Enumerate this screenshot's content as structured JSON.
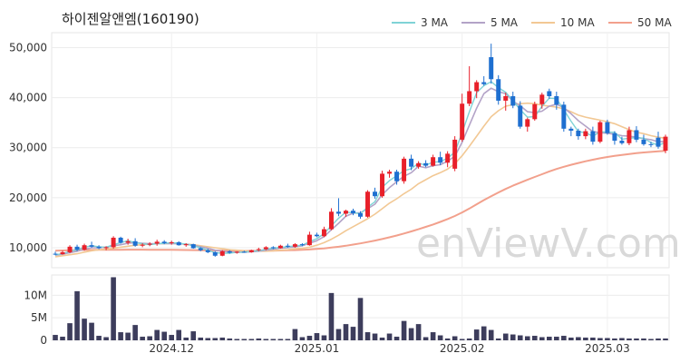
{
  "chart_data": [
    {
      "type": "candlestick",
      "title": "하이젠알앤엠(160190)",
      "yticks": [
        "10,000",
        "20,000",
        "30,000",
        "40,000",
        "50,000"
      ],
      "ytick_values": [
        10000,
        20000,
        30000,
        40000,
        50000
      ],
      "ylim": [
        6000,
        53000
      ],
      "xticks": [
        "2024.12",
        "2025.01",
        "2025.02",
        "2025.03"
      ],
      "xtick_index": [
        16,
        36,
        56,
        76
      ],
      "legend": [
        {
          "label": "3 MA",
          "color": "#7fd3d6"
        },
        {
          "label": "5 MA",
          "color": "#b3a3c7"
        },
        {
          "label": "10 MA",
          "color": "#f2c894"
        },
        {
          "label": "50 MA",
          "color": "#f2a08c"
        }
      ],
      "up_color": "#e8202a",
      "down_color": "#1e6fd0",
      "candles": [
        [
          8800,
          9200,
          8500,
          8700
        ],
        [
          8700,
          9400,
          8600,
          9100
        ],
        [
          9100,
          10500,
          8900,
          10200
        ],
        [
          10200,
          10600,
          9300,
          9600
        ],
        [
          9600,
          10800,
          9400,
          10500
        ],
        [
          10500,
          11200,
          10000,
          10200
        ],
        [
          10200,
          10500,
          9700,
          9900
        ],
        [
          9900,
          10300,
          9500,
          10100
        ],
        [
          10100,
          12300,
          9800,
          12000
        ],
        [
          12000,
          12200,
          10800,
          11000
        ],
        [
          11000,
          11800,
          10600,
          11300
        ],
        [
          11300,
          11900,
          10200,
          10400
        ],
        [
          10400,
          10900,
          10100,
          10600
        ],
        [
          10600,
          11100,
          10300,
          10800
        ],
        [
          10800,
          11600,
          10400,
          11200
        ],
        [
          11200,
          11500,
          10700,
          10900
        ],
        [
          10900,
          11400,
          10600,
          11100
        ],
        [
          11100,
          11300,
          10400,
          10500
        ],
        [
          10500,
          10900,
          10200,
          10700
        ],
        [
          10700,
          10800,
          9800,
          9900
        ],
        [
          9900,
          10100,
          9300,
          9500
        ],
        [
          9500,
          9800,
          8900,
          9100
        ],
        [
          9100,
          9300,
          8200,
          8400
        ],
        [
          8400,
          9500,
          8300,
          9300
        ],
        [
          9300,
          9500,
          8800,
          9000
        ],
        [
          9000,
          9300,
          8800,
          9200
        ],
        [
          9200,
          9400,
          9000,
          9100
        ],
        [
          9100,
          9600,
          9000,
          9500
        ],
        [
          9500,
          10000,
          9300,
          9700
        ],
        [
          9700,
          10300,
          9500,
          10100
        ],
        [
          10100,
          10300,
          9700,
          9900
        ],
        [
          9900,
          10600,
          9800,
          10400
        ],
        [
          10400,
          10800,
          10000,
          10200
        ],
        [
          10200,
          10900,
          10000,
          10700
        ],
        [
          10700,
          10900,
          10300,
          10500
        ],
        [
          10500,
          13200,
          10400,
          12600
        ],
        [
          12600,
          13000,
          12100,
          12300
        ],
        [
          12300,
          14200,
          12100,
          13700
        ],
        [
          13700,
          17900,
          13500,
          17200
        ],
        [
          17200,
          19900,
          16300,
          16800
        ],
        [
          16800,
          17600,
          16200,
          17400
        ],
        [
          17400,
          17800,
          16500,
          16900
        ],
        [
          16900,
          17300,
          15800,
          16200
        ],
        [
          16200,
          21500,
          16000,
          21200
        ],
        [
          21200,
          22000,
          19800,
          20300
        ],
        [
          20300,
          25400,
          20000,
          24800
        ],
        [
          24800,
          25600,
          24000,
          25200
        ],
        [
          25200,
          25600,
          22600,
          23300
        ],
        [
          23300,
          28200,
          22800,
          27800
        ],
        [
          27800,
          28600,
          25500,
          26200
        ],
        [
          26200,
          27300,
          25800,
          26900
        ],
        [
          26900,
          27500,
          26100,
          26400
        ],
        [
          26400,
          28600,
          26200,
          28100
        ],
        [
          28100,
          29200,
          26500,
          27000
        ],
        [
          27000,
          29300,
          26100,
          28800
        ],
        [
          25800,
          32300,
          25300,
          31600
        ],
        [
          31600,
          40800,
          31200,
          38800
        ],
        [
          38800,
          46300,
          38300,
          41300
        ],
        [
          41300,
          43500,
          39900,
          43100
        ],
        [
          43100,
          44300,
          42400,
          42700
        ],
        [
          48100,
          50800,
          42800,
          43700
        ],
        [
          43700,
          44500,
          38600,
          39400
        ],
        [
          39400,
          41000,
          37400,
          40300
        ],
        [
          40300,
          41200,
          37900,
          38400
        ],
        [
          38400,
          39300,
          33800,
          34200
        ],
        [
          34200,
          36000,
          33200,
          35700
        ],
        [
          35700,
          39200,
          35400,
          38700
        ],
        [
          38700,
          41000,
          37800,
          40600
        ],
        [
          41300,
          41800,
          39800,
          40300
        ],
        [
          40300,
          41200,
          37600,
          38600
        ],
        [
          38600,
          39200,
          33200,
          33800
        ],
        [
          33800,
          34200,
          32300,
          33400
        ],
        [
          33400,
          33800,
          31600,
          32300
        ],
        [
          32300,
          33800,
          31700,
          33300
        ],
        [
          33300,
          34200,
          30600,
          31200
        ],
        [
          31200,
          35400,
          30900,
          35100
        ],
        [
          35100,
          35600,
          32600,
          32900
        ],
        [
          32900,
          33300,
          30600,
          31400
        ],
        [
          31400,
          32200,
          30600,
          30900
        ],
        [
          30900,
          34200,
          30500,
          33500
        ],
        [
          33500,
          34300,
          31100,
          31600
        ],
        [
          31600,
          32600,
          30400,
          30700
        ],
        [
          30700,
          31200,
          30100,
          30600
        ],
        [
          32000,
          33200,
          29800,
          30200
        ],
        [
          29400,
          32600,
          28900,
          32200
        ]
      ],
      "ma3": [
        8600,
        8800,
        9300,
        9600,
        10100,
        10400,
        10200,
        10100,
        10600,
        11000,
        11400,
        11000,
        10800,
        10600,
        10800,
        10900,
        11000,
        10900,
        10700,
        10400,
        10000,
        9500,
        9000,
        8900,
        8900,
        9100,
        9100,
        9300,
        9400,
        9700,
        9900,
        10100,
        10200,
        10400,
        10500,
        11200,
        11800,
        12800,
        14400,
        15900,
        17100,
        17000,
        16800,
        18100,
        19200,
        22100,
        23400,
        24400,
        25400,
        25800,
        26900,
        26500,
        27100,
        27200,
        27900,
        29100,
        33000,
        37200,
        41000,
        42400,
        43200,
        42000,
        41100,
        39400,
        37600,
        36100,
        36200,
        38300,
        39900,
        39800,
        37600,
        35300,
        33200,
        33000,
        32300,
        33200,
        33100,
        33100,
        31700,
        31900,
        32000,
        31900,
        31000,
        30500,
        31000
      ],
      "ma5": [
        8500,
        8700,
        9000,
        9300,
        9700,
        10000,
        10000,
        10100,
        10400,
        10600,
        10900,
        11000,
        10900,
        10800,
        10800,
        10800,
        10800,
        10800,
        10700,
        10500,
        10200,
        9900,
        9500,
        9300,
        9100,
        9100,
        9100,
        9200,
        9300,
        9500,
        9700,
        9900,
        10000,
        10200,
        10400,
        10900,
        11400,
        12200,
        13600,
        14900,
        16300,
        16900,
        17000,
        17800,
        18700,
        20600,
        22000,
        23200,
        24300,
        25000,
        26300,
        26000,
        26400,
        26600,
        27300,
        28300,
        31100,
        34500,
        37900,
        40800,
        41900,
        41200,
        40800,
        39300,
        38400,
        37200,
        37000,
        37300,
        38300,
        38700,
        38000,
        36800,
        35400,
        34300,
        33200,
        33000,
        32900,
        32700,
        32400,
        32300,
        32100,
        31800,
        31600,
        31200,
        31200
      ],
      "ma10": [
        8200,
        8400,
        8600,
        8800,
        9100,
        9400,
        9600,
        9700,
        9900,
        10100,
        10300,
        10500,
        10600,
        10700,
        10800,
        10800,
        10800,
        10800,
        10700,
        10600,
        10400,
        10200,
        10000,
        9800,
        9600,
        9500,
        9400,
        9300,
        9300,
        9300,
        9400,
        9500,
        9600,
        9800,
        9900,
        10100,
        10500,
        11000,
        11700,
        12500,
        13400,
        14200,
        15000,
        15800,
        16700,
        17800,
        18900,
        19800,
        20800,
        21700,
        22800,
        23600,
        24400,
        25000,
        25700,
        26800,
        28400,
        30300,
        32300,
        34300,
        36200,
        37400,
        38300,
        38600,
        38800,
        38900,
        38800,
        38500,
        38300,
        38100,
        37800,
        37200,
        36500,
        36100,
        35800,
        35500,
        35200,
        34800,
        34200,
        33600,
        33100,
        32800,
        32400,
        32100,
        31900
      ],
      "ma50": [
        9400,
        9450,
        9500,
        9520,
        9550,
        9560,
        9570,
        9580,
        9600,
        9600,
        9610,
        9610,
        9610,
        9600,
        9590,
        9580,
        9570,
        9560,
        9540,
        9520,
        9500,
        9470,
        9440,
        9420,
        9400,
        9390,
        9380,
        9380,
        9390,
        9400,
        9420,
        9450,
        9480,
        9520,
        9570,
        9650,
        9750,
        9870,
        10020,
        10200,
        10400,
        10620,
        10860,
        11130,
        11420,
        11740,
        12080,
        12450,
        12840,
        13260,
        13700,
        14160,
        14640,
        15160,
        15720,
        16350,
        17060,
        17840,
        18680,
        19520,
        20300,
        21050,
        21760,
        22400,
        23000,
        23580,
        24150,
        24700,
        25250,
        25740,
        26180,
        26580,
        26950,
        27290,
        27600,
        27880,
        28130,
        28360,
        28560,
        28740,
        28900,
        29040,
        29160,
        29270,
        29380
      ]
    },
    {
      "type": "bar",
      "yticks": [
        "0",
        "5M",
        "10M"
      ],
      "ytick_values": [
        0,
        5000000,
        10000000
      ],
      "ylim": [
        0,
        14500000
      ],
      "values": [
        1200000,
        800000,
        3800000,
        10900000,
        4800000,
        3900000,
        1000000,
        700000,
        14000000,
        1800000,
        1700000,
        3400000,
        800000,
        900000,
        2300000,
        1900000,
        1200000,
        2300000,
        600000,
        2000000,
        600000,
        500000,
        500000,
        600000,
        400000,
        300000,
        300000,
        300000,
        400000,
        300000,
        300000,
        300000,
        300000,
        2500000,
        700000,
        1000000,
        1600000,
        1100000,
        10500000,
        2500000,
        3600000,
        3000000,
        9400000,
        1800000,
        1500000,
        600000,
        1500000,
        800000,
        4300000,
        2700000,
        3600000,
        700000,
        1800000,
        1100000,
        400000,
        900000,
        300000,
        400000,
        2400000,
        3100000,
        2300000,
        400000,
        1500000,
        1300000,
        1100000,
        900000,
        1000000,
        700000,
        800000,
        800000,
        1000000,
        600000,
        700000,
        600000,
        600000,
        500000,
        500000,
        400000,
        500000,
        400000,
        400000,
        400000,
        300000,
        400000,
        400000
      ],
      "bar_color": "#3d3d5c"
    }
  ],
  "watermark": "enViewV.com"
}
